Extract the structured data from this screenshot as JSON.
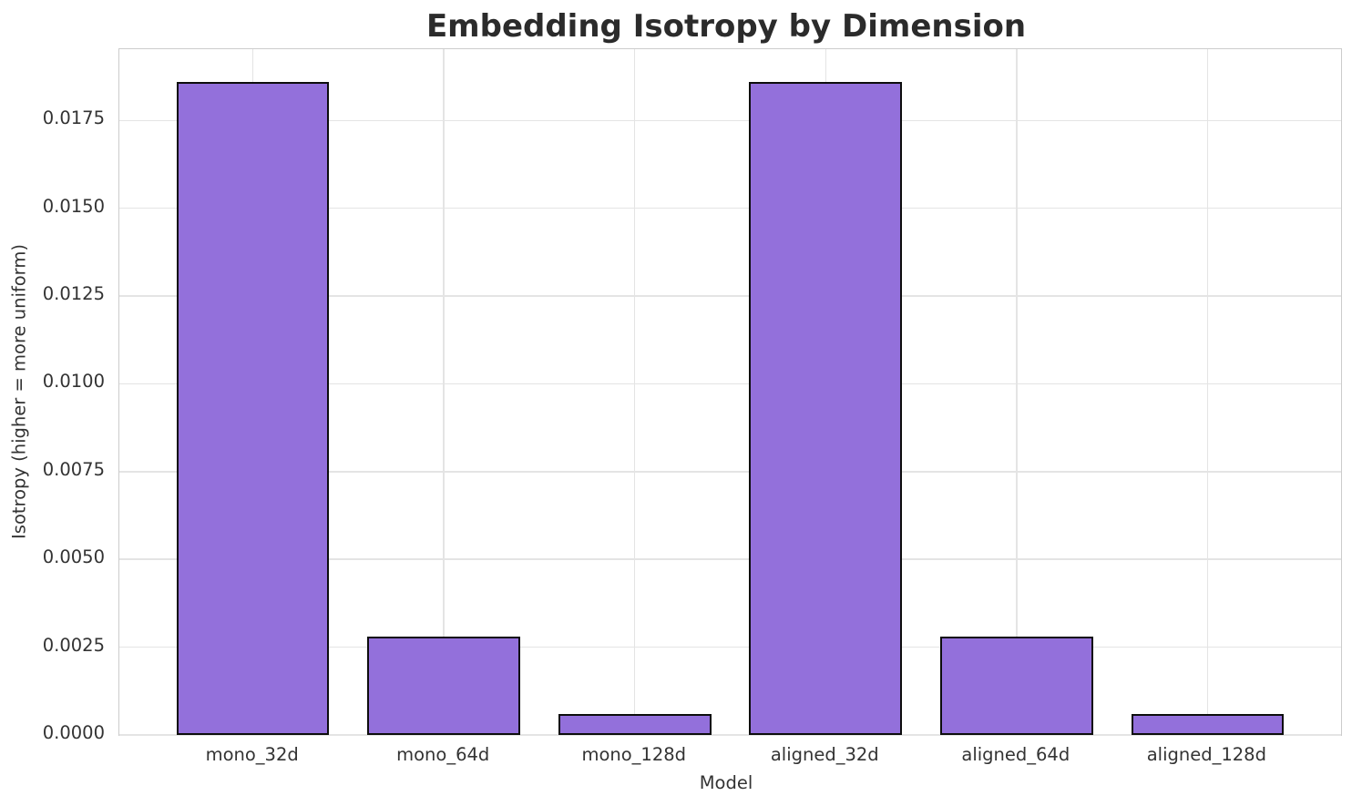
{
  "chart_data": {
    "type": "bar",
    "title": "Embedding Isotropy by Dimension",
    "xlabel": "Model",
    "ylabel": "Isotropy (higher = more uniform)",
    "categories": [
      "mono_32d",
      "mono_64d",
      "mono_128d",
      "aligned_32d",
      "aligned_64d",
      "aligned_128d"
    ],
    "values": [
      0.0186,
      0.0028,
      0.0006,
      0.0186,
      0.0028,
      0.0006
    ],
    "ylim": [
      0,
      0.01953
    ],
    "yticks": [
      0,
      0.0025,
      0.005,
      0.0075,
      0.01,
      0.0125,
      0.015,
      0.0175
    ],
    "ytick_labels": [
      "0.0000",
      "0.0025",
      "0.0050",
      "0.0075",
      "0.0100",
      "0.0125",
      "0.0150",
      "0.0175"
    ],
    "grid": "on",
    "legend": "none",
    "bar_relative_width": 0.8,
    "colors": {
      "bar_fill": "#9370db",
      "bar_edge": "#0d0d0d",
      "grid_line": "#e4e4e4",
      "spine": "#cccccc",
      "title_text": "#2b2b2b",
      "tick_text": "#333333",
      "background": "#ffffff"
    }
  }
}
